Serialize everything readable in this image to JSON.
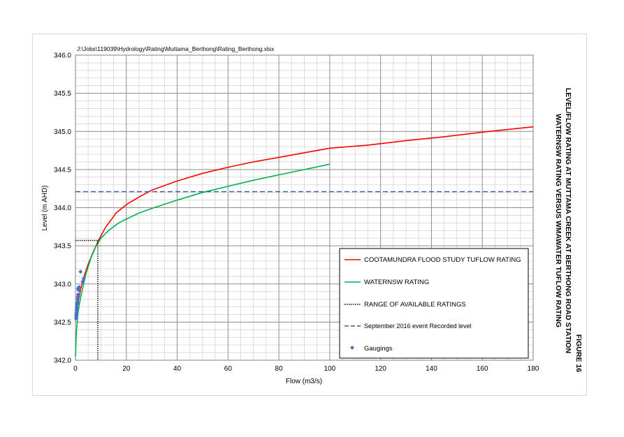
{
  "header": {
    "file_path": "J:\\Jobs\\119039\\Hydrology\\Rating\\Muttama_Berthong\\Rating_Berthong.xlsx"
  },
  "figure": {
    "number": "FIGURE 16",
    "title_line1": "LEVEL/FLOW RATING AT MUTTAMA CREEK AT BERTHONG ROAD STATION",
    "title_line2": "WATERNSW RATING VERSUS WMAWATER TUFLOW RATING"
  },
  "chart_data": {
    "type": "line",
    "xlabel": "Flow (m3/s)",
    "ylabel": "Level (m AHD)",
    "xlim": [
      0,
      180
    ],
    "ylim": [
      342.0,
      346.0
    ],
    "x_ticks": [
      0,
      20,
      40,
      60,
      80,
      100,
      120,
      140,
      160,
      180
    ],
    "y_ticks": [
      "342.0",
      "342.5",
      "343.0",
      "343.5",
      "344.0",
      "344.5",
      "345.0",
      "345.5",
      "346.0"
    ],
    "grid": true,
    "legend_position": "bottom-right",
    "series": [
      {
        "name": "COOTAMUNDRA FLOOD STUDY TUFLOW RATING",
        "color": "#ff0000",
        "style": "solid",
        "x": [
          0,
          0.5,
          1,
          2,
          3,
          5,
          7,
          9,
          12,
          16,
          20,
          25,
          30,
          40,
          50,
          60,
          70,
          80,
          90,
          100,
          115,
          130,
          145,
          160,
          180
        ],
        "y": [
          342.52,
          342.64,
          342.75,
          342.93,
          343.06,
          343.26,
          343.42,
          343.57,
          343.75,
          343.93,
          344.04,
          344.14,
          344.23,
          344.35,
          344.45,
          344.53,
          344.6,
          344.66,
          344.72,
          344.78,
          344.82,
          344.88,
          344.93,
          344.99,
          345.06
        ]
      },
      {
        "name": "WATERNSW RATING",
        "color": "#00b050",
        "style": "solid",
        "x": [
          0,
          0.3,
          1,
          2,
          4,
          6,
          8,
          10,
          13,
          17,
          20,
          25,
          30,
          40,
          50,
          60,
          70,
          80,
          90,
          100
        ],
        "y": [
          342.05,
          342.35,
          342.62,
          342.82,
          343.12,
          343.33,
          343.49,
          343.6,
          343.7,
          343.8,
          343.85,
          343.93,
          343.99,
          344.1,
          344.2,
          344.28,
          344.36,
          344.43,
          344.5,
          344.57
        ]
      },
      {
        "name": "RANGE OF AVAILABLE RATINGS",
        "color": "#000000",
        "style": "dotted",
        "x": [
          0,
          8.8,
          8.8
        ],
        "y": [
          343.57,
          343.57,
          342.0
        ]
      },
      {
        "name": "September 2016 event Recorded level",
        "color": "#2e5da8",
        "style": "dashed",
        "x": [
          0,
          180
        ],
        "y": [
          344.21,
          344.21
        ]
      },
      {
        "name": "Gaugings",
        "color": "#4472c4",
        "style": "marker",
        "x": [
          0.2,
          0.3,
          0.4,
          0.5,
          0.6,
          0.7,
          0.8,
          0.9,
          1.0,
          1.2,
          1.4,
          0.6,
          0.8,
          1.0,
          2.0,
          2.8,
          3.2,
          0.4,
          0.3,
          0.5
        ],
        "y": [
          342.55,
          342.6,
          342.65,
          342.7,
          342.73,
          342.76,
          342.8,
          342.83,
          342.86,
          342.92,
          342.96,
          342.68,
          342.75,
          342.94,
          343.16,
          343.03,
          343.07,
          342.62,
          342.58,
          342.67
        ]
      }
    ]
  }
}
